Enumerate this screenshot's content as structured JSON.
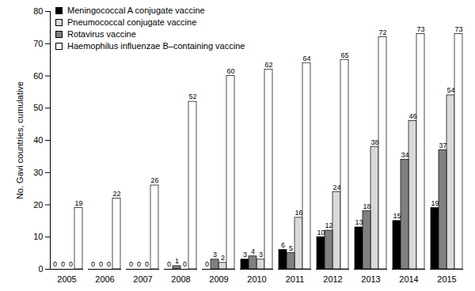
{
  "chart_data": {
    "type": "bar",
    "y_label": "No. Gavi countries, cumulative",
    "categories": [
      "2005",
      "2006",
      "2007",
      "2008",
      "2009",
      "2010",
      "2011",
      "2012",
      "2013",
      "2014",
      "2015"
    ],
    "series": [
      {
        "name": "Meningococcal A conjugate vaccine",
        "color": "#000000",
        "values": [
          0,
          0,
          0,
          0,
          0,
          3,
          6,
          10,
          13,
          15,
          19
        ]
      },
      {
        "name": "Pneumococcal conjugate vaccine",
        "color": "#d9d9d9",
        "values": [
          0,
          0,
          0,
          0,
          2,
          3,
          16,
          24,
          38,
          46,
          54
        ]
      },
      {
        "name": "Rotavirus vaccine",
        "color": "#808080",
        "values": [
          0,
          0,
          0,
          1,
          3,
          4,
          5,
          12,
          18,
          34,
          37
        ]
      },
      {
        "name": "Haemophilus influenzae B–containing vaccine",
        "color": "#ffffff",
        "values": [
          19,
          22,
          26,
          52,
          60,
          62,
          64,
          65,
          72,
          73,
          73
        ]
      }
    ],
    "ylim": [
      0,
      80
    ],
    "yticks": [
      0,
      10,
      20,
      30,
      40,
      50,
      60,
      70,
      80
    ],
    "data_labels": true,
    "legend": "top-left",
    "grid": false
  }
}
